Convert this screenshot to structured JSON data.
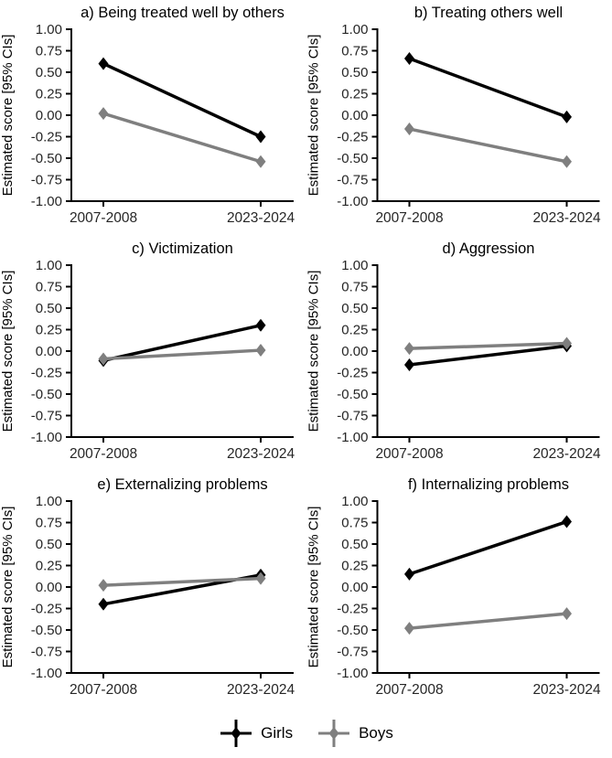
{
  "chart_data": {
    "type": "line",
    "description": "Six-panel pointrange line figure; estimated scores with 95% CIs for Girls and Boys across two survey periods",
    "x_categories": [
      "2007-2008",
      "2023-2024"
    ],
    "ylabel": "Estimated score [95% CIs]",
    "ylim": [
      -1.0,
      1.0
    ],
    "ytick_labels": [
      "1.00",
      "0.75",
      "0.50",
      "0.25",
      "0.00",
      "-0.25",
      "-0.50",
      "-0.75",
      "-1.00"
    ],
    "grid": false,
    "legend_position": "bottom",
    "legend": [
      {
        "name": "Girls",
        "color": "#000000"
      },
      {
        "name": "Boys",
        "color": "#7f7f7f"
      }
    ],
    "colors": {
      "axis": "#000000",
      "tick_text": "#262626",
      "title_text": "#000000",
      "background": "#ffffff"
    },
    "panels": [
      {
        "label": "a) Being treated well by others",
        "series": [
          {
            "name": "Girls",
            "values": [
              0.6,
              -0.25
            ],
            "ci": [
              0.05,
              0.06
            ]
          },
          {
            "name": "Boys",
            "values": [
              0.02,
              -0.54
            ],
            "ci": [
              0.04,
              0.05
            ]
          }
        ]
      },
      {
        "label": "b) Treating others well",
        "series": [
          {
            "name": "Girls",
            "values": [
              0.66,
              -0.02
            ],
            "ci": [
              0.05,
              0.06
            ]
          },
          {
            "name": "Boys",
            "values": [
              -0.16,
              -0.54
            ],
            "ci": [
              0.05,
              0.05
            ]
          }
        ]
      },
      {
        "label": "c) Victimization",
        "series": [
          {
            "name": "Girls",
            "values": [
              -0.11,
              0.3
            ],
            "ci": [
              0.06,
              0.06
            ]
          },
          {
            "name": "Boys",
            "values": [
              -0.09,
              0.01
            ],
            "ci": [
              0.04,
              0.06
            ]
          }
        ]
      },
      {
        "label": "d) Aggression",
        "series": [
          {
            "name": "Girls",
            "values": [
              -0.16,
              0.06
            ],
            "ci": [
              0.05,
              0.06
            ]
          },
          {
            "name": "Boys",
            "values": [
              0.03,
              0.09
            ],
            "ci": [
              0.05,
              0.05
            ]
          }
        ]
      },
      {
        "label": "e) Externalizing problems",
        "series": [
          {
            "name": "Girls",
            "values": [
              -0.2,
              0.14
            ],
            "ci": [
              0.05,
              0.06
            ]
          },
          {
            "name": "Boys",
            "values": [
              0.02,
              0.1
            ],
            "ci": [
              0.04,
              0.06
            ]
          }
        ]
      },
      {
        "label": "f) Internalizing problems",
        "series": [
          {
            "name": "Girls",
            "values": [
              0.15,
              0.76
            ],
            "ci": [
              0.05,
              0.05
            ]
          },
          {
            "name": "Boys",
            "values": [
              -0.48,
              -0.31
            ],
            "ci": [
              0.04,
              0.05
            ]
          }
        ]
      }
    ]
  }
}
